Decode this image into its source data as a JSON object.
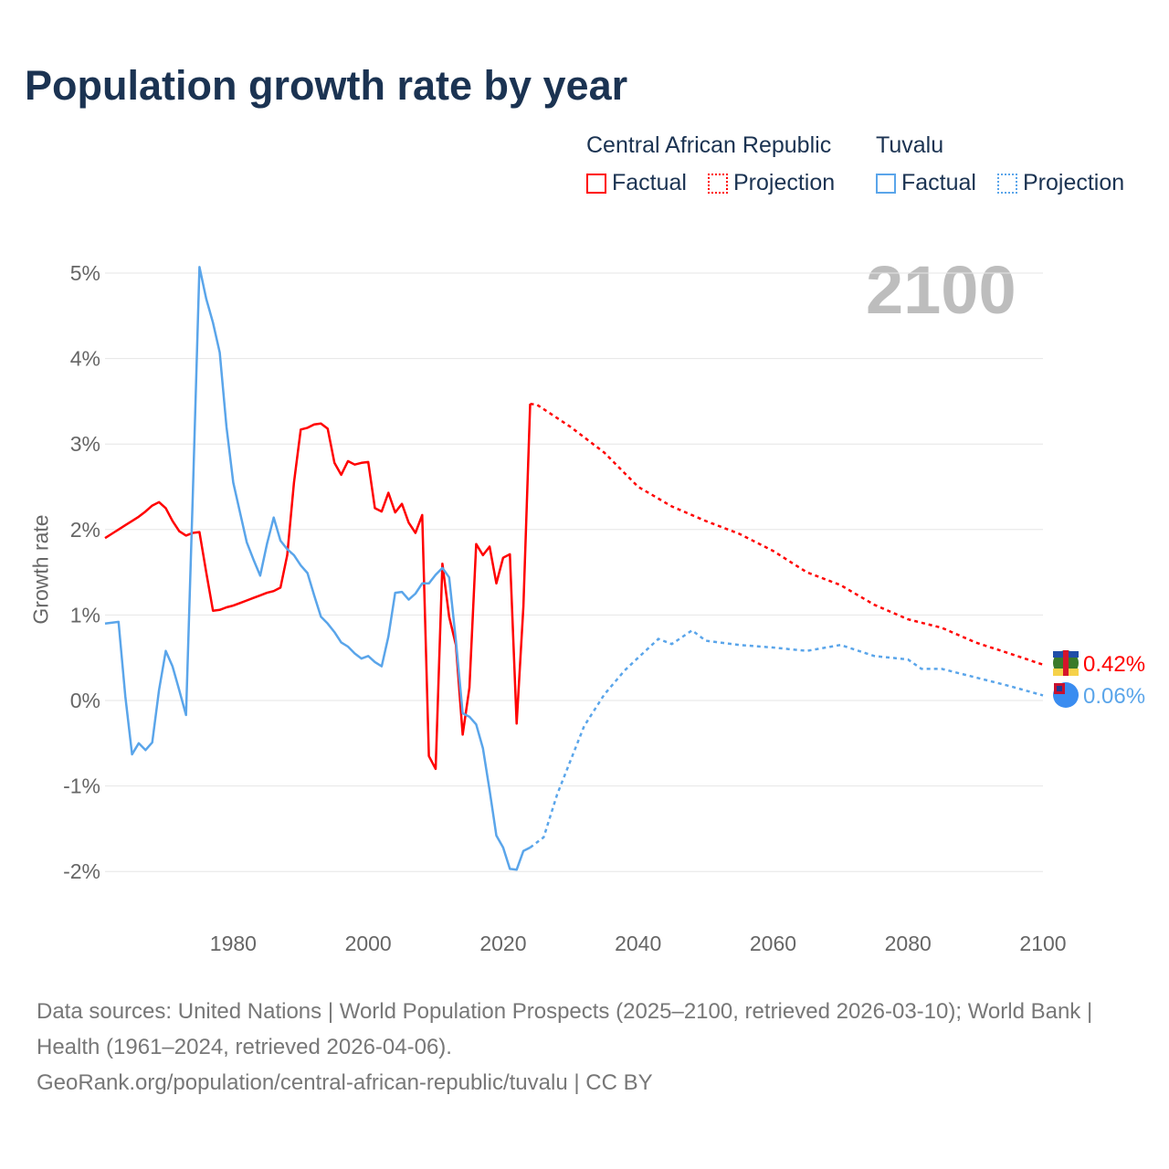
{
  "chart_data": {
    "type": "line",
    "title": "Population growth rate by year",
    "ylabel": "Growth rate",
    "xlabel": "",
    "xlim": [
      1961,
      2100
    ],
    "ylim": [
      -2.3,
      5.3
    ],
    "y_ticks": [
      -2,
      -1,
      0,
      1,
      2,
      3,
      4,
      5
    ],
    "y_tick_labels": [
      "-2%",
      "-1%",
      "0%",
      "1%",
      "2%",
      "3%",
      "4%",
      "5%"
    ],
    "x_ticks": [
      1980,
      2000,
      2020,
      2040,
      2060,
      2080,
      2100
    ],
    "x_tick_labels": [
      "1980",
      "2000",
      "2020",
      "2040",
      "2060",
      "2080",
      "2100"
    ],
    "grid": true,
    "current_year": "2100",
    "legend": {
      "placement": "top-right",
      "groups": [
        {
          "name": "Central African Republic",
          "factual": "Factual",
          "projection": "Projection"
        },
        {
          "name": "Tuvalu",
          "factual": "Factual",
          "projection": "Projection"
        }
      ]
    },
    "series": [
      {
        "name": "Central African Republic",
        "color": "#ff0000",
        "end_label": "0.42%",
        "factual": {
          "x": [
            1961,
            1962,
            1963,
            1964,
            1965,
            1966,
            1967,
            1968,
            1969,
            1970,
            1971,
            1972,
            1973,
            1974,
            1975,
            1976,
            1977,
            1978,
            1979,
            1980,
            1981,
            1982,
            1983,
            1984,
            1985,
            1986,
            1987,
            1988,
            1989,
            1990,
            1991,
            1992,
            1993,
            1994,
            1995,
            1996,
            1997,
            1998,
            1999,
            2000,
            2001,
            2002,
            2003,
            2004,
            2005,
            2006,
            2007,
            2008,
            2009,
            2010,
            2011,
            2012,
            2013,
            2014,
            2015,
            2016,
            2017,
            2018,
            2019,
            2020,
            2021,
            2022,
            2023,
            2024
          ],
          "y": [
            1.9,
            1.95,
            2.0,
            2.05,
            2.1,
            2.15,
            2.21,
            2.28,
            2.32,
            2.25,
            2.1,
            1.98,
            1.93,
            1.96,
            1.97,
            1.5,
            1.05,
            1.06,
            1.09,
            1.11,
            1.14,
            1.17,
            1.2,
            1.23,
            1.26,
            1.28,
            1.32,
            1.7,
            2.55,
            3.17,
            3.19,
            3.23,
            3.24,
            3.18,
            2.78,
            2.64,
            2.8,
            2.76,
            2.78,
            2.79,
            2.25,
            2.21,
            2.43,
            2.2,
            2.3,
            2.08,
            1.96,
            2.17,
            -0.65,
            -0.8,
            1.6,
            0.98,
            0.65,
            -0.4,
            0.15,
            1.83,
            1.7,
            1.8,
            1.37,
            1.67,
            1.71,
            -0.27,
            1.1,
            3.47
          ]
        },
        "projection": {
          "x": [
            2024,
            2025,
            2030,
            2035,
            2040,
            2045,
            2050,
            2055,
            2060,
            2065,
            2070,
            2075,
            2080,
            2085,
            2090,
            2095,
            2100
          ],
          "y": [
            3.47,
            3.46,
            3.2,
            2.9,
            2.5,
            2.27,
            2.1,
            1.95,
            1.75,
            1.5,
            1.35,
            1.12,
            0.95,
            0.85,
            0.68,
            0.55,
            0.42
          ]
        }
      },
      {
        "name": "Tuvalu",
        "color": "#5aa5ea",
        "end_label": "0.06%",
        "factual": {
          "x": [
            1961,
            1963,
            1964,
            1965,
            1966,
            1967,
            1968,
            1969,
            1970,
            1971,
            1972,
            1973,
            1974,
            1975,
            1976,
            1977,
            1978,
            1979,
            1980,
            1981,
            1982,
            1983,
            1984,
            1985,
            1986,
            1987,
            1988,
            1989,
            1990,
            1991,
            1992,
            1993,
            1994,
            1995,
            1996,
            1997,
            1998,
            1999,
            2000,
            2001,
            2002,
            2003,
            2004,
            2005,
            2006,
            2007,
            2008,
            2009,
            2010,
            2011,
            2012,
            2013,
            2014,
            2015,
            2016,
            2017,
            2018,
            2019,
            2020,
            2021,
            2022,
            2023,
            2024
          ],
          "y": [
            0.9,
            0.92,
            0.05,
            -0.63,
            -0.5,
            -0.58,
            -0.49,
            0.12,
            0.58,
            0.4,
            0.12,
            -0.17,
            2.4,
            5.07,
            4.7,
            4.42,
            4.07,
            3.2,
            2.55,
            2.2,
            1.85,
            1.65,
            1.46,
            1.83,
            2.14,
            1.87,
            1.77,
            1.7,
            1.58,
            1.49,
            1.23,
            0.98,
            0.9,
            0.8,
            0.68,
            0.63,
            0.55,
            0.49,
            0.52,
            0.45,
            0.4,
            0.75,
            1.26,
            1.27,
            1.18,
            1.25,
            1.37,
            1.37,
            1.47,
            1.55,
            1.44,
            0.7,
            -0.15,
            -0.19,
            -0.28,
            -0.56,
            -1.05,
            -1.58,
            -1.72,
            -1.97,
            -1.98,
            -1.76,
            -1.72
          ]
        },
        "projection": {
          "x": [
            2024,
            2026,
            2028,
            2030,
            2032,
            2035,
            2038,
            2040,
            2043,
            2045,
            2048,
            2050,
            2055,
            2060,
            2065,
            2070,
            2075,
            2080,
            2082,
            2085,
            2090,
            2095,
            2100
          ],
          "y": [
            -1.72,
            -1.6,
            -1.1,
            -0.7,
            -0.3,
            0.07,
            0.35,
            0.5,
            0.72,
            0.66,
            0.82,
            0.7,
            0.65,
            0.62,
            0.58,
            0.65,
            0.52,
            0.48,
            0.37,
            0.37,
            0.27,
            0.17,
            0.06
          ]
        }
      }
    ]
  },
  "footer": {
    "sources": "Data sources: United Nations | World Population Prospects (2025–2100, retrieved 2026-03-10); World Bank | Health (1961–2024, retrieved 2026-04-06).",
    "url": "GeoRank.org/population/central-african-republic/tuvalu | CC BY"
  }
}
